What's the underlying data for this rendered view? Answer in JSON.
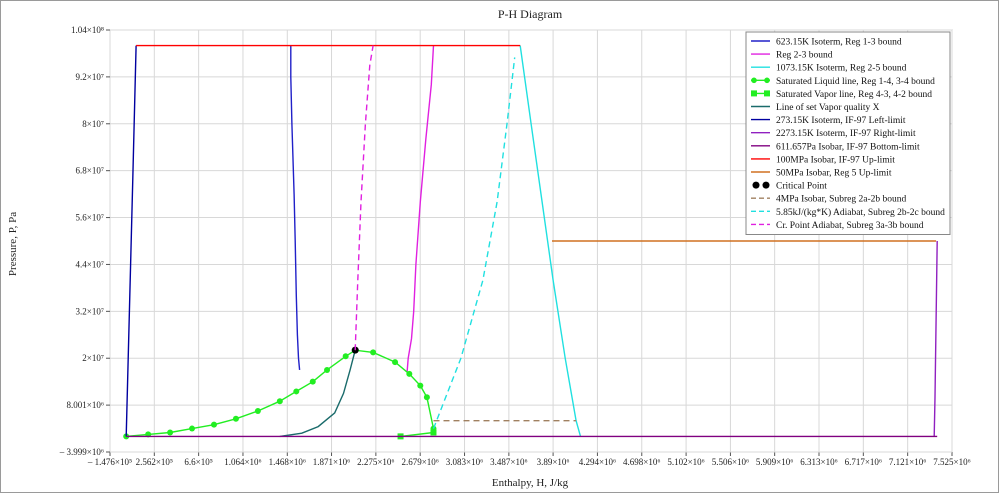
{
  "chart_data": {
    "type": "line",
    "title": "P-H Diagram",
    "xlabel": "Enthalpy, H, J/kg",
    "ylabel": "Pressure, P, Pa",
    "xlim": [
      -147600,
      7525000
    ],
    "ylim": [
      -3999000,
      104000000
    ],
    "x_ticks": [
      "– 1.476×10⁵",
      "2.562×10⁵",
      "6.6×10⁵",
      "1.064×10⁶",
      "1.468×10⁶",
      "1.871×10⁶",
      "2.275×10⁶",
      "2.679×10⁶",
      "3.083×10⁶",
      "3.487×10⁶",
      "3.89×10⁶",
      "4.294×10⁶",
      "4.698×10⁶",
      "5.102×10⁶",
      "5.506×10⁶",
      "5.909×10⁶",
      "6.313×10⁶",
      "6.717×10⁶",
      "7.121×10⁶",
      "7.525×10⁶"
    ],
    "x_tick_values": [
      -147600,
      256200,
      660000,
      1064000,
      1468000,
      1871000,
      2275000,
      2679000,
      3083000,
      3487000,
      3890000,
      4294000,
      4698000,
      5102000,
      5506000,
      5909000,
      6313000,
      6717000,
      7121000,
      7525000
    ],
    "y_ticks": [
      "– 3.999×10⁶",
      "8.001×10⁶",
      "2×10⁷",
      "3.2×10⁷",
      "4.4×10⁷",
      "5.6×10⁷",
      "6.8×10⁷",
      "8×10⁷",
      "9.2×10⁷",
      "1.04×10⁸"
    ],
    "y_tick_values": [
      -3999000,
      8001000,
      20000000,
      32000000,
      44000000,
      56000000,
      68000000,
      80000000,
      92000000,
      104000000
    ],
    "grid": true,
    "legend_position": "top-right",
    "series": [
      {
        "name": "623.15K Isoterm, Reg 1-3 bound",
        "color": "#2020c8",
        "dash": "",
        "x": [
          1580000,
          1570000,
          1560000,
          1550000,
          1540000,
          1530000,
          1510000,
          1500000,
          1500000
        ],
        "y": [
          17000000,
          20000000,
          26000000,
          36000000,
          50000000,
          62000000,
          80000000,
          92000000,
          100000000
        ]
      },
      {
        "name": "Reg 2-3 bound",
        "color": "#e020e0",
        "dash": "",
        "x": [
          2560000,
          2570000,
          2600000,
          2620000,
          2640000,
          2680000,
          2730000,
          2780000,
          2800000
        ],
        "y": [
          16500000,
          20000000,
          25000000,
          32000000,
          44000000,
          60000000,
          76000000,
          90000000,
          100000000
        ]
      },
      {
        "name": "1073.15K Isoterm, Reg 2-5 bound",
        "color": "#20e0e0",
        "dash": "",
        "x": [
          3590000,
          3690000,
          3790000,
          3890000,
          4000000,
          4100000,
          4140000
        ],
        "y": [
          100000000,
          80000000,
          60000000,
          40000000,
          20000000,
          4000000,
          0
        ]
      },
      {
        "name": "Saturated Liquid line, Reg 1-4, 3-4 bound",
        "color": "#22ee22",
        "dash": "",
        "markers": "circle",
        "x": [
          0,
          200000,
          400000,
          600000,
          800000,
          1000000,
          1200000,
          1400000,
          1550000,
          1700000,
          1830000,
          2000000,
          2087000,
          2250000,
          2450000,
          2580000,
          2680000,
          2740000,
          2800000
        ],
        "y": [
          611,
          500000,
          1000000,
          2000000,
          3000000,
          4500000,
          6500000,
          9000000,
          11500000,
          14000000,
          17000000,
          20500000,
          22064000,
          21500000,
          19000000,
          16000000,
          13000000,
          10000000,
          2000000
        ]
      },
      {
        "name": "Saturated Vapor line, Reg 4-3, 4-2 bound",
        "color": "#22ee22",
        "dash": "",
        "markers": "square",
        "x": [
          2500000,
          2800000
        ],
        "y": [
          611,
          1000000
        ]
      },
      {
        "name": "Line of set Vapor quality X",
        "color": "#1a6b6b",
        "dash": "",
        "x": [
          1400000,
          1600000,
          1750000,
          1900000,
          1980000,
          2040000,
          2087000
        ],
        "y": [
          611,
          800000,
          2500000,
          6000000,
          11000000,
          17000000,
          22064000
        ]
      },
      {
        "name": "273.15K Isoterm, IF-97 Left-limit",
        "color": "#0000a0",
        "dash": "",
        "x": [
          0,
          30000,
          60000,
          90000
        ],
        "y": [
          611,
          33000000,
          66000000,
          100000000
        ]
      },
      {
        "name": "2273.15K Isoterm, IF-97 Right-limit",
        "color": "#9020c0",
        "dash": "",
        "x": [
          7363000,
          7370000,
          7380000,
          7390000
        ],
        "y": [
          611,
          10000000,
          30000000,
          50000000
        ]
      },
      {
        "name": "611.657Pa Isobar, IF-97 Bottom-limit",
        "color": "#800080",
        "dash": "",
        "x": [
          0,
          7390000
        ],
        "y": [
          611,
          611
        ]
      },
      {
        "name": "100MPa Isobar, IF-97 Up-limit",
        "color": "#ff0000",
        "dash": "",
        "x": [
          90000,
          3590000
        ],
        "y": [
          100000000,
          100000000
        ]
      },
      {
        "name": "50MPa Isobar, Reg 5 Up-limit",
        "color": "#d07020",
        "dash": "",
        "x": [
          3880000,
          7380000
        ],
        "y": [
          50000000,
          50000000
        ]
      },
      {
        "name": "Critical Point",
        "color": "#000000",
        "dash": "",
        "markers": "dot",
        "x": [
          2087000
        ],
        "y": [
          22064000
        ]
      },
      {
        "name": "4MPa Isobar, Subreg 2a-2b bound",
        "color": "#a08060",
        "dash": "6,4",
        "x": [
          2800000,
          4100000
        ],
        "y": [
          4000000,
          4000000
        ]
      },
      {
        "name": "5.85kJ/(kg*K) Adiabat, Subreg 2b-2c bound",
        "color": "#20e0e0",
        "dash": "6,4",
        "x": [
          2800000,
          3050000,
          3250000,
          3380000,
          3470000,
          3540000
        ],
        "y": [
          2000000,
          20000000,
          40000000,
          60000000,
          80000000,
          97000000
        ]
      },
      {
        "name": "Cr. Point Adiabat, Subreg 3a-3b bound",
        "color": "#e020e0",
        "dash": "6,4",
        "x": [
          2087000,
          2110000,
          2140000,
          2180000,
          2220000,
          2250000
        ],
        "y": [
          22064000,
          40000000,
          60000000,
          80000000,
          95000000,
          100000000
        ]
      }
    ]
  }
}
